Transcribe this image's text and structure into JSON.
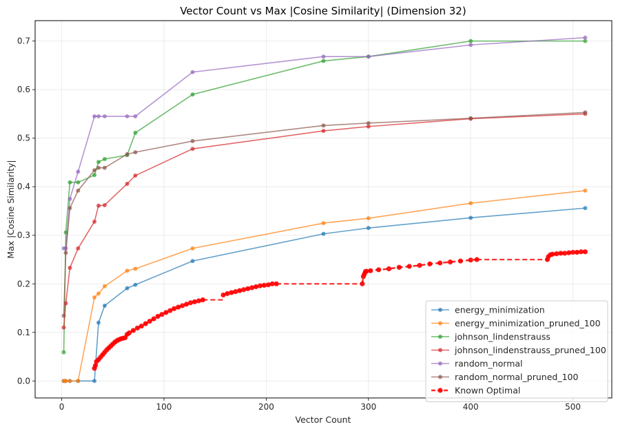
{
  "chart_data": {
    "type": "line",
    "title": "Vector Count vs Max |Cosine Similarity| (Dimension 32)",
    "xlabel": "Vector Count",
    "ylabel": "Max |Cosine Similarity|",
    "xlim": [
      -26,
      538
    ],
    "ylim": [
      -0.035,
      0.742
    ],
    "xticks": [
      0,
      100,
      200,
      300,
      400,
      500
    ],
    "yticks": [
      0.0,
      0.1,
      0.2,
      0.3,
      0.4,
      0.5,
      0.6,
      0.7
    ],
    "xtick_labels": [
      "0",
      "100",
      "200",
      "300",
      "400",
      "500"
    ],
    "ytick_labels": [
      "0.0",
      "0.1",
      "0.2",
      "0.3",
      "0.4",
      "0.5",
      "0.6",
      "0.7"
    ],
    "grid": true,
    "legend_position": "lower right",
    "series": [
      {
        "name": "energy_minimization",
        "color": "#1f77b4",
        "style": "solid",
        "x": [
          2,
          3,
          4,
          8,
          16,
          32,
          36,
          42,
          64,
          72,
          128,
          256,
          300,
          400,
          512
        ],
        "y": [
          0.0,
          0.0,
          0.0,
          0.0,
          0.0,
          0.0,
          0.12,
          0.155,
          0.191,
          0.198,
          0.247,
          0.303,
          0.315,
          0.336,
          0.356
        ]
      },
      {
        "name": "energy_minimization_pruned_100",
        "color": "#ff7f0e",
        "style": "solid",
        "x": [
          2,
          3,
          4,
          8,
          16,
          32,
          36,
          42,
          64,
          72,
          128,
          256,
          300,
          400,
          512
        ],
        "y": [
          0.0,
          0.0,
          0.0,
          0.0,
          0.0,
          0.172,
          0.18,
          0.195,
          0.227,
          0.231,
          0.273,
          0.325,
          0.335,
          0.366,
          0.392
        ]
      },
      {
        "name": "johnson_lindenstrauss",
        "color": "#2ca02c",
        "style": "solid",
        "x": [
          2,
          4,
          8,
          16,
          32,
          36,
          42,
          64,
          72,
          128,
          256,
          300,
          400,
          512
        ],
        "y": [
          0.059,
          0.306,
          0.409,
          0.409,
          0.424,
          0.451,
          0.457,
          0.465,
          0.511,
          0.59,
          0.659,
          0.668,
          0.7,
          0.7
        ]
      },
      {
        "name": "johnson_lindenstrauss_pruned_100",
        "color": "#d62728",
        "style": "solid",
        "x": [
          2,
          4,
          8,
          16,
          32,
          36,
          42,
          64,
          72,
          128,
          256,
          300,
          400,
          512
        ],
        "y": [
          0.11,
          0.16,
          0.233,
          0.273,
          0.328,
          0.361,
          0.362,
          0.406,
          0.423,
          0.478,
          0.515,
          0.524,
          0.54,
          0.55
        ]
      },
      {
        "name": "random_normal",
        "color": "#9467bd",
        "style": "solid",
        "x": [
          2,
          4,
          8,
          16,
          32,
          36,
          42,
          64,
          72,
          128,
          256,
          300,
          400,
          512
        ],
        "y": [
          0.273,
          0.273,
          0.375,
          0.431,
          0.545,
          0.545,
          0.545,
          0.545,
          0.545,
          0.636,
          0.668,
          0.668,
          0.692,
          0.707
        ]
      },
      {
        "name": "random_normal_pruned_100",
        "color": "#8c564b",
        "style": "solid",
        "x": [
          2,
          4,
          8,
          16,
          32,
          36,
          42,
          64,
          72,
          128,
          256,
          300,
          400,
          512
        ],
        "y": [
          0.134,
          0.264,
          0.356,
          0.392,
          0.434,
          0.439,
          0.439,
          0.467,
          0.471,
          0.494,
          0.526,
          0.531,
          0.541,
          0.553
        ]
      },
      {
        "name": "Known Optimal",
        "color": "#ff0000",
        "style": "dashed",
        "segments": [
          {
            "x": [
              32,
              33,
              34,
              36,
              38,
              40,
              42,
              44,
              46,
              48,
              50,
              52,
              54,
              56,
              58,
              60,
              62,
              64,
              66,
              70,
              74,
              78,
              82,
              86,
              90,
              94,
              98,
              102,
              106,
              110,
              114,
              118,
              122,
              126,
              130,
              134,
              138
            ],
            "y": [
              0.026,
              0.032,
              0.04,
              0.044,
              0.049,
              0.054,
              0.059,
              0.064,
              0.068,
              0.072,
              0.076,
              0.08,
              0.083,
              0.085,
              0.087,
              0.088,
              0.089,
              0.096,
              0.099,
              0.104,
              0.109,
              0.113,
              0.118,
              0.123,
              0.128,
              0.133,
              0.137,
              0.141,
              0.145,
              0.149,
              0.152,
              0.155,
              0.158,
              0.161,
              0.163,
              0.165,
              0.167
            ]
          },
          {
            "x": [
              158,
              162,
              166,
              170,
              174,
              178,
              182,
              186,
              190,
              194,
              198,
              202,
              206,
              210
            ],
            "y": [
              0.177,
              0.18,
              0.182,
              0.184,
              0.186,
              0.188,
              0.19,
              0.192,
              0.194,
              0.196,
              0.197,
              0.198,
              0.2,
              0.2
            ]
          },
          {
            "x": [
              294,
              295,
              296,
              297,
              298,
              302,
              310,
              320,
              330,
              340,
              350,
              360,
              370,
              380,
              390,
              400,
              406
            ],
            "y": [
              0.2,
              0.215,
              0.22,
              0.225,
              0.226,
              0.227,
              0.229,
              0.231,
              0.234,
              0.236,
              0.238,
              0.241,
              0.243,
              0.245,
              0.247,
              0.249,
              0.25
            ]
          },
          {
            "x": [
              475,
              476,
              478,
              480,
              484,
              488,
              492,
              496,
              500,
              504,
              508,
              512
            ],
            "y": [
              0.25,
              0.256,
              0.26,
              0.261,
              0.262,
              0.263,
              0.263,
              0.264,
              0.265,
              0.265,
              0.266,
              0.266
            ]
          }
        ],
        "gap_lines": [
          {
            "x": [
              138,
              158
            ],
            "y": [
              0.167,
              0.167
            ]
          },
          {
            "x": [
              210,
              294
            ],
            "y": [
              0.2,
              0.2
            ]
          },
          {
            "x": [
              406,
              475
            ],
            "y": [
              0.25,
              0.25
            ]
          }
        ]
      }
    ]
  }
}
